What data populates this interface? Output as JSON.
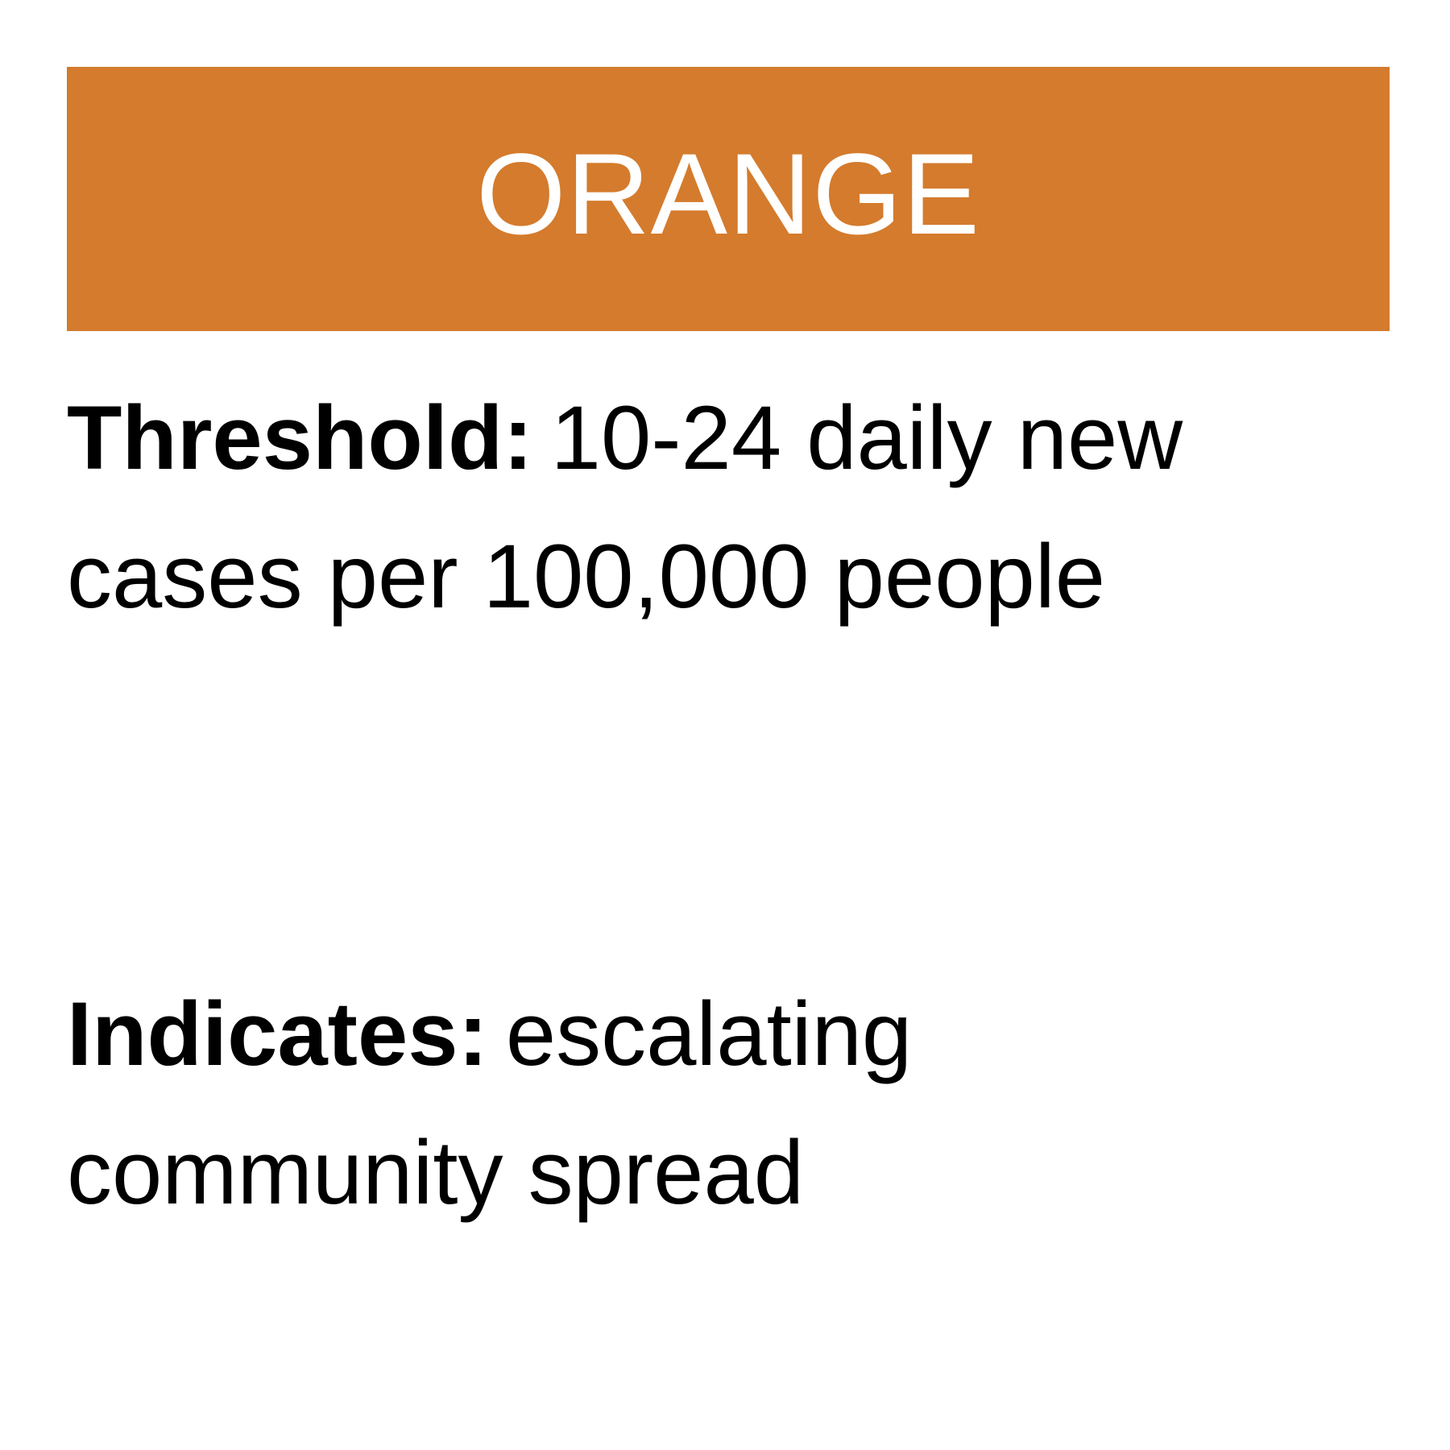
{
  "level": {
    "label": "ORANGE",
    "color": "#d47b2d",
    "text_color": "#ffffff"
  },
  "threshold": {
    "title": "Threshold:",
    "text": "10-24 daily new cases per 100,000 people"
  },
  "indicates": {
    "title": "Indicates:",
    "text": "escalating community spread"
  }
}
